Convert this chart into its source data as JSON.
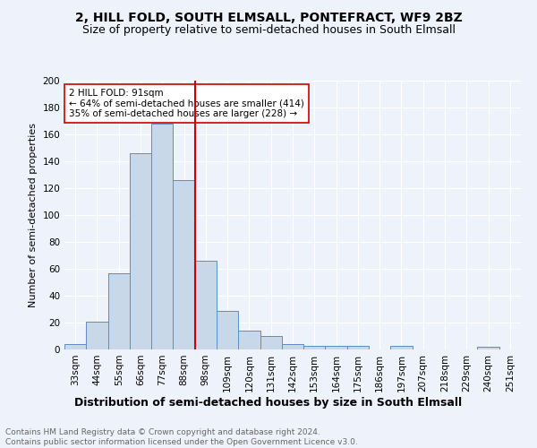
{
  "title": "2, HILL FOLD, SOUTH ELMSALL, PONTEFRACT, WF9 2BZ",
  "subtitle": "Size of property relative to semi-detached houses in South Elmsall",
  "xlabel": "Distribution of semi-detached houses by size in South Elmsall",
  "ylabel_actual": "Number of semi-detached properties",
  "footnote": "Contains HM Land Registry data © Crown copyright and database right 2024.\nContains public sector information licensed under the Open Government Licence v3.0.",
  "bin_labels": [
    "33sqm",
    "44sqm",
    "55sqm",
    "66sqm",
    "77sqm",
    "88sqm",
    "98sqm",
    "109sqm",
    "120sqm",
    "131sqm",
    "142sqm",
    "153sqm",
    "164sqm",
    "175sqm",
    "186sqm",
    "197sqm",
    "207sqm",
    "218sqm",
    "229sqm",
    "240sqm",
    "251sqm"
  ],
  "bar_heights": [
    4,
    21,
    57,
    146,
    168,
    126,
    66,
    29,
    14,
    10,
    4,
    3,
    3,
    3,
    0,
    3,
    0,
    0,
    0,
    2,
    0
  ],
  "bar_color": "#c8d8e8",
  "bar_edge_color": "#5b8ec4",
  "vline_x": 5.5,
  "vline_color": "#cc0000",
  "annotation_text": "2 HILL FOLD: 91sqm\n← 64% of semi-detached houses are smaller (414)\n35% of semi-detached houses are larger (228) →",
  "annotation_box_color": "#ffffff",
  "annotation_box_edge": "#cc0000",
  "ylim": [
    0,
    200
  ],
  "yticks": [
    0,
    20,
    40,
    60,
    80,
    100,
    120,
    140,
    160,
    180,
    200
  ],
  "background_color": "#eef2fa",
  "grid_color": "#ffffff",
  "title_fontsize": 10,
  "subtitle_fontsize": 9,
  "xlabel_fontsize": 9,
  "ylabel_fontsize": 8,
  "tick_fontsize": 7.5,
  "footnote_fontsize": 6.5,
  "annot_fontsize": 7.5
}
